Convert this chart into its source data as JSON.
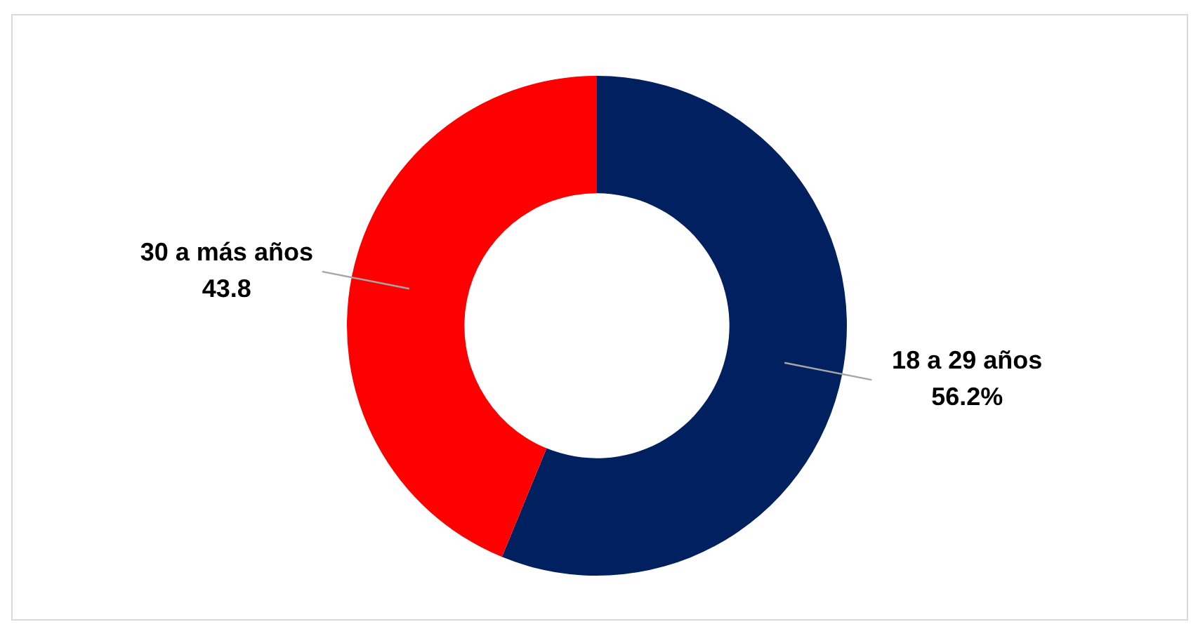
{
  "chart_data": {
    "type": "donut",
    "categories": [
      "18 a 29 años",
      "30 a más años"
    ],
    "values": [
      56.2,
      43.8
    ],
    "colors": [
      "#002060",
      "#ff0000"
    ],
    "value_labels": [
      "56.2%",
      "43.8"
    ],
    "legend": false
  }
}
